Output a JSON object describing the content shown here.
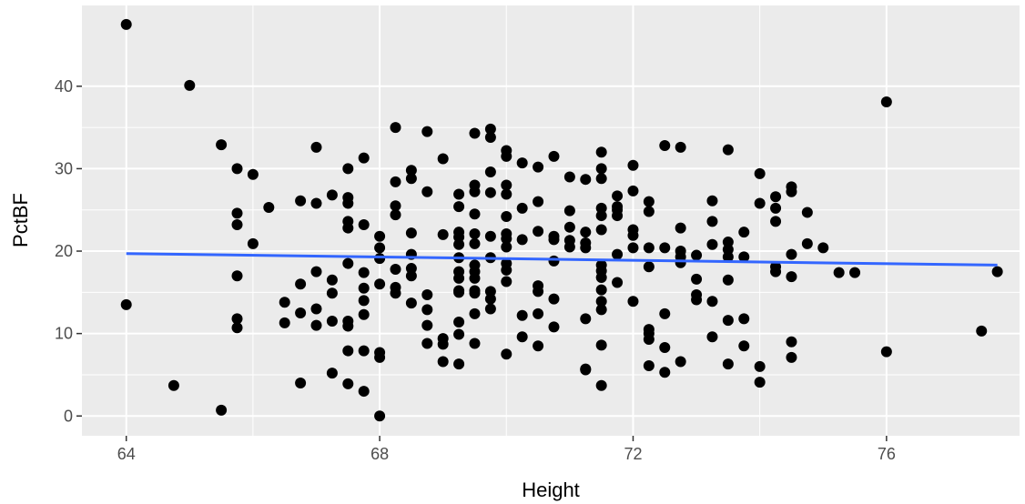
{
  "chart_data": {
    "type": "scatter",
    "title": "",
    "xlabel": "Height",
    "ylabel": "PctBF",
    "xlim": [
      63.3,
      78.1
    ],
    "ylim": [
      -2.4,
      49.8
    ],
    "x_ticks": [
      64,
      68,
      72,
      76
    ],
    "y_ticks": [
      0,
      10,
      20,
      30,
      40
    ],
    "x_tick_labels": [
      "64",
      "68",
      "72",
      "76"
    ],
    "y_tick_labels": [
      "0",
      "10",
      "20",
      "30",
      "40"
    ],
    "grid": true,
    "legend": "none",
    "colors": {
      "panel_background": "#ebebeb",
      "grid": "#ffffff",
      "point": "#000000",
      "fit_line": "#3366ff"
    },
    "fit_line": {
      "x": [
        64,
        77.75
      ],
      "y": [
        19.7,
        18.3
      ]
    },
    "points": [
      [
        64,
        47.5
      ],
      [
        64,
        13.5
      ],
      [
        65,
        40.1
      ],
      [
        64.75,
        3.7
      ],
      [
        65.5,
        32.9
      ],
      [
        65.5,
        0.7
      ],
      [
        65.75,
        30
      ],
      [
        65.75,
        24.6
      ],
      [
        65.75,
        23.2
      ],
      [
        65.75,
        17
      ],
      [
        65.75,
        11.8
      ],
      [
        65.75,
        10.7
      ],
      [
        66,
        29.3
      ],
      [
        66,
        20.9
      ],
      [
        66.25,
        25.3
      ],
      [
        66.5,
        13.8
      ],
      [
        66.5,
        11.3
      ],
      [
        66.75,
        26.1
      ],
      [
        66.75,
        16
      ],
      [
        66.75,
        12.5
      ],
      [
        66.75,
        4
      ],
      [
        67,
        32.6
      ],
      [
        67,
        25.8
      ],
      [
        67,
        17.5
      ],
      [
        67,
        13
      ],
      [
        67,
        11
      ],
      [
        67.25,
        26.8
      ],
      [
        67.25,
        16.5
      ],
      [
        67.25,
        14.9
      ],
      [
        67.25,
        11.5
      ],
      [
        67.25,
        5.2
      ],
      [
        67.5,
        30
      ],
      [
        67.5,
        26.5
      ],
      [
        67.5,
        25.8
      ],
      [
        67.5,
        23.6
      ],
      [
        67.5,
        22.8
      ],
      [
        67.5,
        18.5
      ],
      [
        67.5,
        11.5
      ],
      [
        67.5,
        10.9
      ],
      [
        67.5,
        7.9
      ],
      [
        67.5,
        3.9
      ],
      [
        67.75,
        31.3
      ],
      [
        67.75,
        23.2
      ],
      [
        67.75,
        17.4
      ],
      [
        67.75,
        15.5
      ],
      [
        67.75,
        14
      ],
      [
        67.75,
        12.3
      ],
      [
        67.75,
        7.9
      ],
      [
        67.75,
        3
      ],
      [
        68,
        21.8
      ],
      [
        68,
        20.4
      ],
      [
        68,
        19.1
      ],
      [
        68,
        16
      ],
      [
        68,
        7.7
      ],
      [
        68,
        7.1
      ],
      [
        68,
        0
      ],
      [
        68.25,
        35
      ],
      [
        68.25,
        28.4
      ],
      [
        68.25,
        25.5
      ],
      [
        68.25,
        24.4
      ],
      [
        68.25,
        17.8
      ],
      [
        68.25,
        15.6
      ],
      [
        68.25,
        14.9
      ],
      [
        68.5,
        29.8
      ],
      [
        68.5,
        28.8
      ],
      [
        68.5,
        22.2
      ],
      [
        68.5,
        19.6
      ],
      [
        68.5,
        17.9
      ],
      [
        68.5,
        17
      ],
      [
        68.5,
        13.7
      ],
      [
        68.75,
        34.5
      ],
      [
        68.75,
        27.2
      ],
      [
        68.75,
        14.7
      ],
      [
        68.75,
        12.9
      ],
      [
        68.75,
        11
      ],
      [
        68.75,
        8.8
      ],
      [
        69,
        31.2
      ],
      [
        69,
        22
      ],
      [
        69,
        9.4
      ],
      [
        69,
        8.7
      ],
      [
        69,
        6.6
      ],
      [
        69.25,
        26.9
      ],
      [
        69.25,
        25.4
      ],
      [
        69.25,
        22.3
      ],
      [
        69.25,
        21.7
      ],
      [
        69.25,
        20.8
      ],
      [
        69.25,
        19.2
      ],
      [
        69.25,
        17.5
      ],
      [
        69.25,
        16.7
      ],
      [
        69.25,
        15.2
      ],
      [
        69.25,
        15
      ],
      [
        69.25,
        11.4
      ],
      [
        69.25,
        9.9
      ],
      [
        69.25,
        6.3
      ],
      [
        69.5,
        34.3
      ],
      [
        69.5,
        28
      ],
      [
        69.5,
        27.2
      ],
      [
        69.5,
        24.5
      ],
      [
        69.5,
        22.1
      ],
      [
        69.5,
        20.9
      ],
      [
        69.5,
        18.3
      ],
      [
        69.5,
        17.5
      ],
      [
        69.5,
        16.7
      ],
      [
        69.5,
        15.2
      ],
      [
        69.5,
        14.9
      ],
      [
        69.5,
        12.4
      ],
      [
        69.5,
        8.8
      ],
      [
        69.75,
        34.8
      ],
      [
        69.75,
        33.8
      ],
      [
        69.75,
        29.6
      ],
      [
        69.75,
        27.1
      ],
      [
        69.75,
        21.8
      ],
      [
        69.75,
        19.2
      ],
      [
        69.75,
        15.1
      ],
      [
        69.75,
        14.2
      ],
      [
        69.75,
        13
      ],
      [
        70,
        32.2
      ],
      [
        70,
        31.5
      ],
      [
        70,
        28
      ],
      [
        70,
        26.9
      ],
      [
        70,
        24.2
      ],
      [
        70,
        22.1
      ],
      [
        70,
        21.5
      ],
      [
        70,
        20.5
      ],
      [
        70,
        18.5
      ],
      [
        70,
        17.7
      ],
      [
        70,
        16.3
      ],
      [
        70,
        7.5
      ],
      [
        70.25,
        30.7
      ],
      [
        70.25,
        25.2
      ],
      [
        70.25,
        21.4
      ],
      [
        70.25,
        12.2
      ],
      [
        70.25,
        9.6
      ],
      [
        70.5,
        30.2
      ],
      [
        70.5,
        26
      ],
      [
        70.5,
        22.4
      ],
      [
        70.5,
        15.8
      ],
      [
        70.5,
        15.1
      ],
      [
        70.5,
        12.4
      ],
      [
        70.5,
        8.5
      ],
      [
        70.75,
        31.5
      ],
      [
        70.75,
        21.8
      ],
      [
        70.75,
        21.4
      ],
      [
        70.75,
        18.8
      ],
      [
        70.75,
        14.2
      ],
      [
        70.75,
        10.8
      ],
      [
        71,
        29
      ],
      [
        71,
        24.9
      ],
      [
        71,
        22.9
      ],
      [
        71,
        21.3
      ],
      [
        71,
        20.5
      ],
      [
        71.25,
        28.7
      ],
      [
        71.25,
        22.3
      ],
      [
        71.25,
        21
      ],
      [
        71.25,
        20.4
      ],
      [
        71.25,
        11.8
      ],
      [
        71.25,
        5.7
      ],
      [
        71.25,
        5.6
      ],
      [
        71.5,
        32
      ],
      [
        71.5,
        30
      ],
      [
        71.5,
        28.8
      ],
      [
        71.5,
        25.2
      ],
      [
        71.5,
        24.3
      ],
      [
        71.5,
        22.6
      ],
      [
        71.5,
        18.3
      ],
      [
        71.5,
        17.6
      ],
      [
        71.5,
        16.8
      ],
      [
        71.5,
        15.3
      ],
      [
        71.5,
        13.9
      ],
      [
        71.5,
        12.9
      ],
      [
        71.5,
        8.6
      ],
      [
        71.5,
        3.7
      ],
      [
        71.75,
        26.7
      ],
      [
        71.75,
        25.4
      ],
      [
        71.75,
        25
      ],
      [
        71.75,
        24.3
      ],
      [
        71.75,
        19.6
      ],
      [
        71.75,
        16.2
      ],
      [
        72,
        30.4
      ],
      [
        72,
        27.3
      ],
      [
        72,
        22.6
      ],
      [
        72,
        21.9
      ],
      [
        72,
        20.4
      ],
      [
        72,
        13.9
      ],
      [
        72.25,
        26
      ],
      [
        72.25,
        24.8
      ],
      [
        72.25,
        20.4
      ],
      [
        72.25,
        18.1
      ],
      [
        72.25,
        10.5
      ],
      [
        72.25,
        10
      ],
      [
        72.25,
        9.3
      ],
      [
        72.25,
        6.1
      ],
      [
        72.5,
        32.8
      ],
      [
        72.5,
        20.4
      ],
      [
        72.5,
        12.4
      ],
      [
        72.5,
        8.3
      ],
      [
        72.5,
        5.3
      ],
      [
        72.75,
        32.6
      ],
      [
        72.75,
        22.8
      ],
      [
        72.75,
        20
      ],
      [
        72.75,
        19.3
      ],
      [
        72.75,
        18.6
      ],
      [
        72.75,
        6.6
      ],
      [
        73,
        19.5
      ],
      [
        73,
        16.6
      ],
      [
        73,
        14.7
      ],
      [
        73,
        14.1
      ],
      [
        73.25,
        26.1
      ],
      [
        73.25,
        23.6
      ],
      [
        73.25,
        20.8
      ],
      [
        73.25,
        13.9
      ],
      [
        73.25,
        9.6
      ],
      [
        73.5,
        32.3
      ],
      [
        73.5,
        21.1
      ],
      [
        73.5,
        20.2
      ],
      [
        73.5,
        19.3
      ],
      [
        73.5,
        16.5
      ],
      [
        73.5,
        11.6
      ],
      [
        73.5,
        6.3
      ],
      [
        73.75,
        22.3
      ],
      [
        73.75,
        19.3
      ],
      [
        73.75,
        11.8
      ],
      [
        73.75,
        8.5
      ],
      [
        74,
        29.4
      ],
      [
        74,
        25.8
      ],
      [
        74,
        6
      ],
      [
        74,
        4.1
      ],
      [
        74.25,
        26.6
      ],
      [
        74.25,
        25.2
      ],
      [
        74.25,
        23.6
      ],
      [
        74.25,
        18.1
      ],
      [
        74.25,
        17.5
      ],
      [
        74.5,
        27.8
      ],
      [
        74.5,
        27.2
      ],
      [
        74.5,
        19.6
      ],
      [
        74.5,
        16.9
      ],
      [
        74.5,
        9
      ],
      [
        74.5,
        7.1
      ],
      [
        74.75,
        24.7
      ],
      [
        74.75,
        20.9
      ],
      [
        75,
        20.4
      ],
      [
        75.25,
        17.4
      ],
      [
        75.5,
        17.4
      ],
      [
        76,
        38.1
      ],
      [
        76,
        7.8
      ],
      [
        77.5,
        10.3
      ],
      [
        77.75,
        17.5
      ]
    ]
  }
}
